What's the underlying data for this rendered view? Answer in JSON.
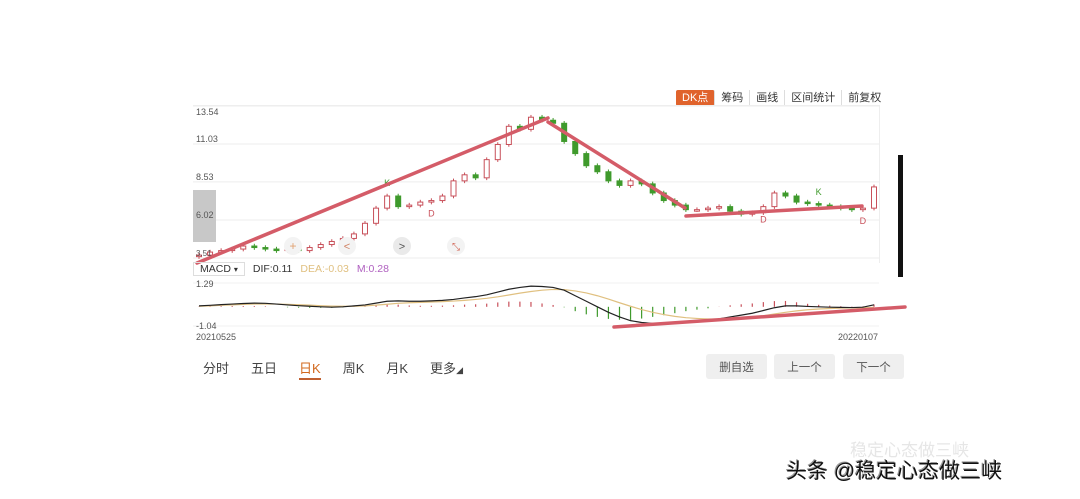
{
  "toolbar": {
    "items": [
      "DK点",
      "筹码",
      "画线",
      "区间统计",
      "前复权"
    ],
    "active": 0
  },
  "macd_header": {
    "select": "MACD",
    "dif": "DIF:0.11",
    "dea": "DEA:-0.03",
    "m": "M:0.28"
  },
  "period_tabs": {
    "items": [
      "分时",
      "五日",
      "日K",
      "周K",
      "月K",
      "更多"
    ],
    "active": 2
  },
  "buttons": {
    "remove_watchlist": "删自选",
    "previous": "上一个",
    "next": "下一个"
  },
  "watermark": {
    "faint": "稳定心态做三峡",
    "main": "头条 @稳定心态做三峡"
  },
  "colors": {
    "up": "#c8505a",
    "down": "#3f9a2c",
    "dif": "#222222",
    "dea": "#e0c080",
    "trendline": "#d45c68",
    "accent": "#e0632c"
  },
  "chart_data": [
    {
      "type": "candlestick",
      "y_ticks": [
        "13.54",
        "11.03",
        "8.53",
        "6.02",
        "3.51"
      ],
      "ylim": [
        3.51,
        13.54
      ],
      "x_labels": [
        "20210525",
        "20220107"
      ],
      "grid": true,
      "close": [
        3.7,
        3.9,
        4.0,
        4.1,
        4.3,
        4.2,
        4.1,
        4.0,
        4.1,
        4.0,
        4.2,
        4.4,
        4.6,
        4.8,
        5.1,
        5.8,
        6.8,
        7.6,
        6.9,
        7.0,
        7.2,
        7.3,
        7.6,
        8.6,
        9.0,
        8.8,
        10.0,
        11.0,
        12.2,
        12.0,
        12.8,
        12.6,
        12.4,
        11.2,
        10.4,
        9.6,
        9.2,
        8.6,
        8.3,
        8.6,
        8.4,
        7.8,
        7.3,
        7.0,
        6.7,
        6.7,
        6.8,
        6.9,
        6.6,
        6.4,
        6.5,
        6.9,
        7.8,
        7.6,
        7.2,
        7.1,
        7.0,
        6.9,
        6.8,
        6.7,
        6.8,
        8.2
      ],
      "markers": [
        {
          "label": "K",
          "index": 17,
          "color": "#3f9a2c"
        },
        {
          "label": "D",
          "index": 21,
          "color": "#c8505a"
        },
        {
          "label": "K",
          "index": 33,
          "color": "#3f9a2c"
        },
        {
          "label": "D",
          "index": 51,
          "color": "#c8505a"
        },
        {
          "label": "K",
          "index": 56,
          "color": "#3f9a2c"
        },
        {
          "label": "D",
          "index": 60,
          "color": "#c8505a"
        }
      ]
    },
    {
      "type": "macd",
      "y_ticks": [
        "1.29",
        "-1.04"
      ],
      "ylim": [
        -1.04,
        1.29
      ],
      "dif": [
        0.05,
        0.08,
        0.12,
        0.15,
        0.18,
        0.2,
        0.19,
        0.15,
        0.1,
        0.06,
        0.03,
        0.0,
        -0.02,
        0.0,
        0.05,
        0.1,
        0.2,
        0.3,
        0.32,
        0.3,
        0.3,
        0.32,
        0.35,
        0.4,
        0.48,
        0.55,
        0.65,
        0.8,
        0.95,
        1.05,
        1.12,
        1.1,
        1.05,
        0.9,
        0.6,
        0.3,
        0.0,
        -0.3,
        -0.55,
        -0.75,
        -0.85,
        -0.9,
        -0.92,
        -0.9,
        -0.85,
        -0.8,
        -0.75,
        -0.65,
        -0.55,
        -0.45,
        -0.35,
        -0.2,
        -0.05,
        0.05,
        0.05,
        0.02,
        0.0,
        -0.02,
        -0.03,
        -0.04,
        -0.02,
        0.11
      ],
      "dea": [
        0.03,
        0.05,
        0.08,
        0.1,
        0.13,
        0.15,
        0.16,
        0.15,
        0.13,
        0.11,
        0.09,
        0.06,
        0.04,
        0.03,
        0.03,
        0.05,
        0.09,
        0.14,
        0.19,
        0.22,
        0.24,
        0.26,
        0.28,
        0.31,
        0.35,
        0.4,
        0.46,
        0.54,
        0.64,
        0.74,
        0.83,
        0.9,
        0.94,
        0.93,
        0.86,
        0.75,
        0.6,
        0.42,
        0.22,
        0.03,
        -0.15,
        -0.3,
        -0.42,
        -0.52,
        -0.59,
        -0.63,
        -0.66,
        -0.66,
        -0.64,
        -0.6,
        -0.55,
        -0.48,
        -0.39,
        -0.3,
        -0.22,
        -0.16,
        -0.12,
        -0.09,
        -0.07,
        -0.06,
        -0.05,
        -0.03
      ]
    }
  ]
}
